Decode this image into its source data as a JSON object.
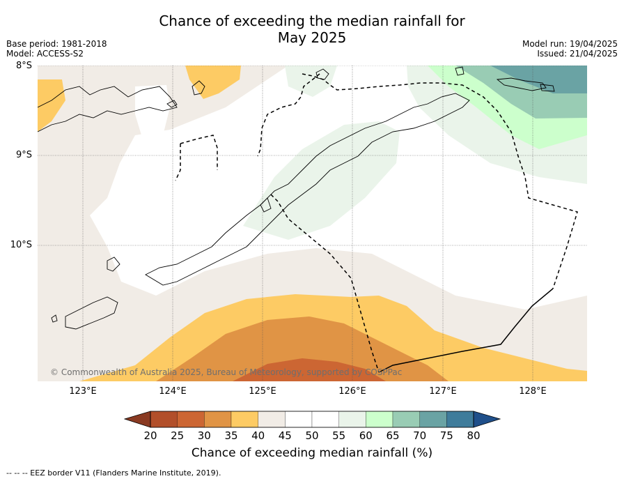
{
  "header": {
    "title_line1": "Chance of exceeding the median rainfall for",
    "title_line2": "May 2025",
    "base_period": "Base period: 1981-2018",
    "model": "Model: ACCESS-S2",
    "model_run": "Model run: 19/04/2025",
    "issued": "Issued: 21/04/2025"
  },
  "map": {
    "lat_labels": [
      "8°S",
      "9°S",
      "10°S"
    ],
    "lon_labels": [
      "123°E",
      "124°E",
      "125°E",
      "126°E",
      "127°E",
      "128°E"
    ],
    "copyright": "© Commonwealth of Australia 2025, Bureau of Meteorology, supported by COSPPac"
  },
  "colorbar": {
    "tick_labels": [
      "20",
      "25",
      "30",
      "35",
      "40",
      "45",
      "50",
      "55",
      "60",
      "65",
      "70",
      "75",
      "80"
    ],
    "colors": [
      "#b24f2a",
      "#cc6633",
      "#e09445",
      "#fdcb64",
      "#f1ece6",
      "#ffffff",
      "#ffffff",
      "#eaf4ea",
      "#ccffcc",
      "#99ccb4",
      "#6aa3a4",
      "#3f7c9b"
    ],
    "under_color": "#8a3a22",
    "over_color": "#1f4f8a",
    "label": "Chance of exceeding median rainfall (%)"
  },
  "footer": {
    "legend_text": "-- -- -- EEZ border V11 (Flanders Marine Institute, 2019)."
  }
}
